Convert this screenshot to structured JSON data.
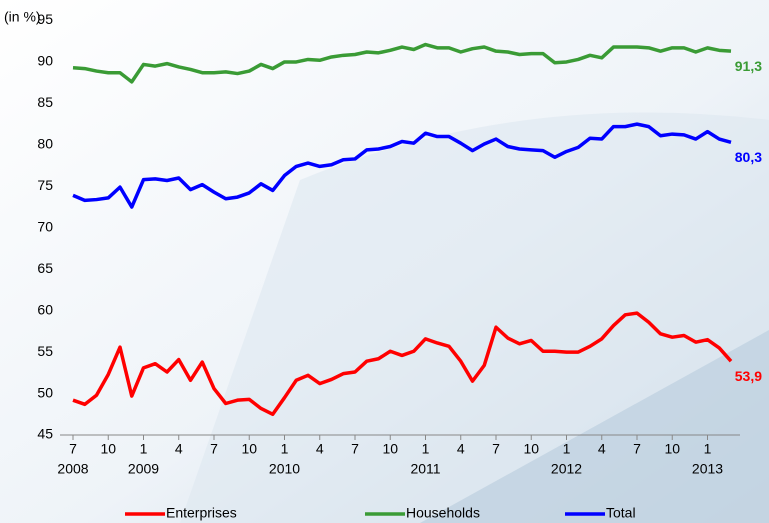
{
  "chart_data": {
    "type": "line",
    "y_label": "(in %)",
    "categories": [
      "7",
      null,
      null,
      "10",
      null,
      null,
      "1",
      null,
      null,
      "4",
      null,
      null,
      "7",
      null,
      null,
      "10",
      null,
      null,
      "1",
      null,
      null,
      "4",
      null,
      null,
      "7",
      null,
      null,
      "10",
      null,
      null,
      "1",
      null,
      null,
      "4",
      null,
      null,
      "7",
      null,
      null,
      "10",
      null,
      null,
      "1",
      null,
      null,
      "4",
      null,
      null,
      "7",
      null,
      null,
      "10",
      null,
      null,
      "1",
      null,
      null
    ],
    "year_labels": [
      "2008",
      null,
      null,
      null,
      null,
      null,
      "2009",
      null,
      null,
      null,
      null,
      null,
      null,
      null,
      null,
      null,
      null,
      null,
      "2010",
      null,
      null,
      null,
      null,
      null,
      null,
      null,
      null,
      null,
      null,
      null,
      "2011",
      null,
      null,
      null,
      null,
      null,
      null,
      null,
      null,
      null,
      null,
      null,
      "2012",
      null,
      null,
      null,
      null,
      null,
      null,
      null,
      null,
      null,
      null,
      null,
      "2013",
      null,
      null
    ],
    "series": [
      {
        "name": "Enterprises",
        "color": "#ff0000",
        "values": [
          49.2,
          48.7,
          49.8,
          52.3,
          55.6,
          49.7,
          53.1,
          53.6,
          52.6,
          54.1,
          51.6,
          53.8,
          50.6,
          48.8,
          49.2,
          49.3,
          48.2,
          47.5,
          49.5,
          51.6,
          52.2,
          51.2,
          51.7,
          52.4,
          52.6,
          53.9,
          54.2,
          55.1,
          54.6,
          55.1,
          56.6,
          56.1,
          55.7,
          53.9,
          51.5,
          53.4,
          58.0,
          56.7,
          56.0,
          56.4,
          55.1,
          55.1,
          55.0,
          55.0,
          55.7,
          56.6,
          58.2,
          59.5,
          59.7,
          58.6,
          57.2,
          56.8,
          57.0,
          56.2,
          56.5,
          55.5,
          53.9
        ],
        "value_labels": [
          null,
          null,
          null,
          null,
          null,
          null,
          null,
          null,
          null,
          null,
          null,
          null,
          null,
          null,
          null,
          null,
          null,
          null,
          null,
          null,
          null,
          null,
          null,
          null,
          null,
          null,
          null,
          null,
          null,
          null,
          null,
          null,
          null,
          null,
          null,
          null,
          null,
          null,
          null,
          null,
          null,
          null,
          null,
          null,
          null,
          null,
          null,
          null,
          null,
          null,
          null,
          null,
          null,
          null,
          null,
          null,
          "53,9"
        ]
      },
      {
        "name": "Households",
        "color": "#3a9b35",
        "values": [
          89.3,
          89.2,
          88.9,
          88.7,
          88.7,
          87.6,
          89.7,
          89.5,
          89.8,
          89.4,
          89.1,
          88.7,
          88.7,
          88.8,
          88.6,
          88.9,
          89.7,
          89.2,
          90.0,
          90.0,
          90.3,
          90.2,
          90.6,
          90.8,
          90.9,
          91.2,
          91.1,
          91.4,
          91.8,
          91.5,
          92.1,
          91.7,
          91.7,
          91.2,
          91.6,
          91.8,
          91.3,
          91.2,
          90.9,
          91.0,
          91.0,
          89.9,
          90.0,
          90.3,
          90.8,
          90.5,
          91.8,
          91.8,
          91.8,
          91.7,
          91.3,
          91.7,
          91.7,
          91.2,
          91.7,
          91.4,
          91.3
        ],
        "value_labels": [
          null,
          null,
          null,
          null,
          null,
          null,
          null,
          null,
          null,
          null,
          null,
          null,
          null,
          null,
          null,
          null,
          null,
          null,
          null,
          null,
          null,
          null,
          null,
          null,
          null,
          null,
          null,
          null,
          null,
          null,
          null,
          null,
          null,
          null,
          null,
          null,
          null,
          null,
          null,
          null,
          null,
          null,
          null,
          null,
          null,
          null,
          null,
          null,
          null,
          null,
          null,
          null,
          null,
          null,
          null,
          null,
          "91,3"
        ]
      },
      {
        "name": "Total",
        "color": "#0000ff",
        "values": [
          73.9,
          73.3,
          73.4,
          73.6,
          74.9,
          72.5,
          75.8,
          75.9,
          75.7,
          76.0,
          74.6,
          75.2,
          74.3,
          73.5,
          73.7,
          74.2,
          75.3,
          74.5,
          76.3,
          77.4,
          77.8,
          77.4,
          77.6,
          78.2,
          78.3,
          79.4,
          79.5,
          79.8,
          80.4,
          80.2,
          81.4,
          81.0,
          81.0,
          80.2,
          79.3,
          80.1,
          80.7,
          79.8,
          79.5,
          79.4,
          79.3,
          78.5,
          79.2,
          79.7,
          80.8,
          80.7,
          82.2,
          82.2,
          82.5,
          82.2,
          81.1,
          81.3,
          81.2,
          80.7,
          81.6,
          80.7,
          80.3
        ],
        "value_labels": [
          null,
          null,
          null,
          null,
          null,
          null,
          null,
          null,
          null,
          null,
          null,
          null,
          null,
          null,
          null,
          null,
          null,
          null,
          null,
          null,
          null,
          null,
          null,
          null,
          null,
          null,
          null,
          null,
          null,
          null,
          null,
          null,
          null,
          null,
          null,
          null,
          null,
          null,
          null,
          null,
          null,
          null,
          null,
          null,
          null,
          null,
          null,
          null,
          null,
          null,
          null,
          null,
          null,
          null,
          null,
          null,
          "80,3"
        ]
      }
    ],
    "ylim": [
      45,
      95
    ],
    "yticks": [
      45,
      50,
      55,
      60,
      65,
      70,
      75,
      80,
      85,
      90,
      95
    ],
    "grid": false
  }
}
